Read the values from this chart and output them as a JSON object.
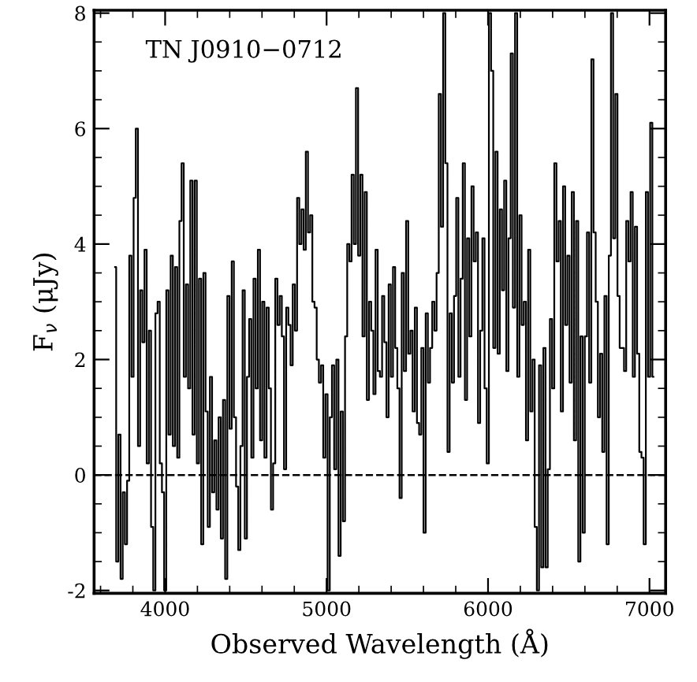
{
  "chart_data": {
    "type": "step",
    "xlabel": "Observed Wavelength (Å)",
    "ylabel": "F$_{ν}$ (μJy)",
    "annotations": [
      "TN J0910−0712"
    ],
    "xlim": [
      3560,
      7100
    ],
    "ylim": [
      -2.05,
      8.05
    ],
    "xticks": [
      4000,
      5000,
      6000,
      7000
    ],
    "yticks": [
      -2,
      0,
      2,
      4,
      6,
      8
    ],
    "grid": false,
    "color": "#000000",
    "ref_lines": [
      {
        "axis": "y",
        "value": 0,
        "line_style": "dashed",
        "color": "#000000"
      }
    ],
    "x": [
      3690,
      3703.5,
      3717,
      3730.5,
      3744,
      3757.5,
      3771,
      3784.5,
      3798,
      3811.5,
      3825,
      3838.5,
      3852,
      3865.5,
      3879,
      3892.5,
      3906,
      3919.5,
      3933,
      3946.5,
      3960,
      3973.5,
      3987,
      4000.5,
      4014,
      4027.5,
      4041,
      4054.5,
      4068,
      4081.5,
      4095,
      4108.5,
      4122,
      4135.5,
      4149,
      4162.5,
      4176,
      4189.5,
      4203,
      4216.5,
      4230,
      4243.5,
      4257,
      4270.5,
      4284,
      4297.5,
      4311,
      4324.5,
      4338,
      4351.5,
      4365,
      4378.5,
      4392,
      4405.5,
      4419,
      4432.5,
      4446,
      4459.5,
      4473,
      4486.5,
      4500,
      4513.5,
      4527,
      4540.5,
      4554,
      4567.5,
      4581,
      4594.5,
      4608,
      4621.5,
      4635,
      4648.5,
      4662,
      4675.5,
      4689,
      4702.5,
      4716,
      4729.5,
      4743,
      4756.5,
      4770,
      4783.5,
      4797,
      4810.5,
      4824,
      4837.5,
      4851,
      4864.5,
      4878,
      4891.5,
      4905,
      4918.5,
      4932,
      4945.5,
      4959,
      4972.5,
      4986,
      4999.5,
      5013,
      5026.5,
      5040,
      5053.5,
      5067,
      5080.5,
      5094,
      5107.5,
      5121,
      5134.5,
      5148,
      5161.5,
      5175,
      5188.5,
      5202,
      5215.5,
      5229,
      5242.5,
      5256,
      5269.5,
      5283,
      5296.5,
      5310,
      5323.5,
      5337,
      5350.5,
      5364,
      5377.5,
      5391,
      5404.5,
      5418,
      5431.5,
      5445,
      5458.5,
      5472,
      5485.5,
      5499,
      5512.5,
      5526,
      5539.5,
      5553,
      5566.5,
      5580,
      5593.5,
      5607,
      5620.5,
      5634,
      5647.5,
      5661,
      5674.5,
      5688,
      5701.5,
      5715,
      5728.5,
      5742,
      5755.5,
      5769,
      5782.5,
      5796,
      5809.5,
      5823,
      5836.5,
      5850,
      5863.5,
      5877,
      5890.5,
      5904,
      5917.5,
      5931,
      5944.5,
      5958,
      5971.5,
      5985,
      5998.5,
      6012,
      6025.5,
      6039,
      6052.5,
      6066,
      6079.5,
      6093,
      6106.5,
      6120,
      6133.5,
      6147,
      6160.5,
      6174,
      6187.5,
      6201,
      6214.5,
      6228,
      6241.5,
      6255,
      6268.5,
      6282,
      6295.5,
      6309,
      6322.5,
      6336,
      6349.5,
      6363,
      6376.5,
      6390,
      6403.5,
      6417,
      6430.5,
      6444,
      6457.5,
      6471,
      6484.5,
      6498,
      6511.5,
      6525,
      6538.5,
      6552,
      6565.5,
      6579,
      6592.5,
      6606,
      6619.5,
      6633,
      6646.5,
      6660,
      6673.5,
      6687,
      6700.5,
      6714,
      6727.5,
      6741,
      6754.5,
      6768,
      6781.5,
      6795,
      6808.5,
      6822,
      6835.5,
      6849,
      6862.5,
      6876,
      6889.5,
      6903,
      6916.5,
      6930,
      6943.5,
      6957,
      6970.5,
      6984,
      6997.5,
      7011,
      7024.5
    ],
    "values": [
      3.6,
      -1.5,
      0.7,
      -1.8,
      -0.3,
      -1.2,
      -0.1,
      3.8,
      1.7,
      4.8,
      6.0,
      0.5,
      3.2,
      2.3,
      3.9,
      0.2,
      2.5,
      -0.9,
      -2.0,
      2.8,
      3.0,
      0.2,
      -0.3,
      -2.0,
      3.2,
      0.7,
      3.8,
      0.5,
      3.6,
      0.3,
      4.4,
      5.4,
      1.7,
      3.3,
      1.5,
      5.1,
      0.7,
      5.1,
      0.2,
      3.4,
      -1.2,
      3.5,
      1.1,
      -0.9,
      1.7,
      -0.3,
      0.6,
      -0.6,
      1.0,
      -1.1,
      1.3,
      -1.8,
      3.1,
      0.8,
      3.7,
      1.0,
      -0.2,
      -1.3,
      0.5,
      3.2,
      -1.1,
      1.7,
      2.7,
      0.3,
      3.4,
      1.5,
      3.9,
      0.6,
      3.0,
      0.3,
      2.9,
      1.5,
      -0.6,
      0.2,
      3.4,
      2.6,
      3.1,
      2.4,
      0.1,
      2.9,
      2.6,
      1.9,
      3.3,
      2.5,
      4.8,
      4.0,
      4.6,
      3.9,
      5.6,
      4.2,
      4.5,
      3.0,
      2.9,
      2.0,
      1.6,
      1.9,
      0.3,
      1.4,
      -2.0,
      1.0,
      1.9,
      0.1,
      2.0,
      -1.4,
      1.1,
      -0.8,
      2.4,
      4.0,
      3.7,
      5.2,
      4.0,
      6.7,
      3.8,
      5.2,
      2.4,
      4.9,
      1.3,
      3.0,
      2.5,
      1.4,
      3.9,
      1.8,
      1.7,
      3.1,
      2.3,
      1.0,
      3.3,
      1.7,
      3.6,
      2.2,
      1.5,
      -0.4,
      3.5,
      1.8,
      4.4,
      2.1,
      2.5,
      1.1,
      2.9,
      0.9,
      0.7,
      2.2,
      -1.0,
      2.8,
      1.6,
      2.2,
      3.0,
      2.5,
      3.5,
      6.6,
      4.3,
      8.0,
      5.4,
      0.4,
      2.8,
      1.6,
      3.1,
      4.8,
      1.7,
      3.4,
      5.4,
      1.3,
      4.1,
      2.4,
      5.0,
      3.7,
      4.2,
      0.9,
      2.5,
      4.1,
      1.5,
      0.2,
      8.0,
      7.0,
      2.2,
      5.6,
      2.1,
      4.6,
      3.2,
      5.1,
      1.8,
      4.1,
      7.3,
      2.9,
      8.0,
      1.7,
      4.5,
      2.6,
      3.0,
      0.6,
      3.9,
      1.1,
      2.0,
      -0.9,
      -2.0,
      1.9,
      -1.6,
      2.2,
      -1.6,
      0.1,
      2.7,
      1.5,
      5.4,
      3.7,
      4.4,
      1.1,
      5.0,
      2.6,
      3.8,
      1.6,
      4.9,
      0.6,
      4.4,
      -1.5,
      2.4,
      -1.0,
      2.4,
      4.2,
      1.6,
      7.2,
      4.2,
      3.0,
      1.0,
      2.1,
      0.4,
      3.1,
      -1.2,
      3.8,
      8.0,
      4.1,
      6.6,
      3.1,
      2.2,
      2.2,
      1.8,
      4.4,
      3.7,
      4.9,
      1.7,
      4.3,
      2.1,
      0.4,
      0.3,
      -1.2,
      4.9,
      1.7,
      6.1,
      1.7
    ]
  }
}
